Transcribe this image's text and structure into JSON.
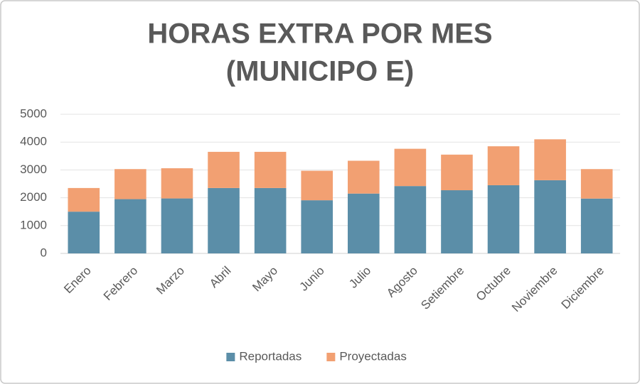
{
  "chart_data": {
    "type": "stacked_bar",
    "title": [
      "HORAS EXTRA POR MES",
      "(MUNICIPO E)"
    ],
    "categories": [
      "Enero",
      "Febrero",
      "Marzo",
      "Abril",
      "Mayo",
      "Junio",
      "Julio",
      "Agosto",
      "Setiembre",
      "Octubre",
      "Noviembre",
      "Diciembre"
    ],
    "series": [
      {
        "name": "Reportadas",
        "color": "#5b8ea8",
        "values": [
          1500,
          1950,
          1975,
          2350,
          2350,
          1910,
          2150,
          2420,
          2270,
          2450,
          2630,
          1970
        ]
      },
      {
        "name": "Proyectadas",
        "color": "#f2a072",
        "values": [
          850,
          1080,
          1085,
          1300,
          1300,
          1060,
          1180,
          1340,
          1280,
          1400,
          1470,
          1060
        ]
      }
    ],
    "ylim": [
      0,
      5000
    ],
    "yticks": [
      0,
      1000,
      2000,
      3000,
      4000,
      5000
    ],
    "grid": true,
    "legend": "bottom"
  }
}
